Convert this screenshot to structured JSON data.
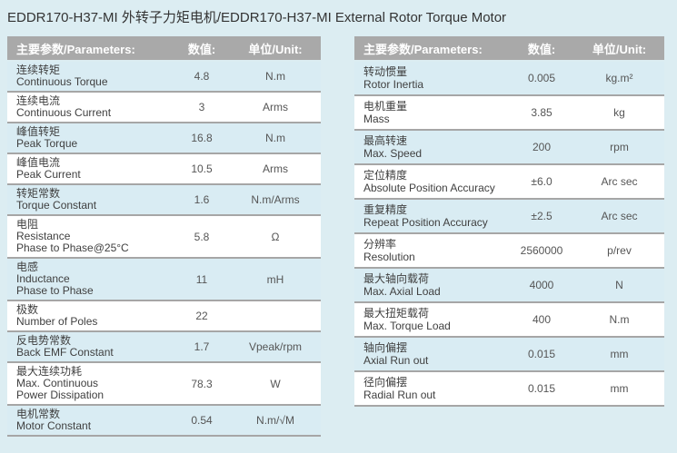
{
  "title": "EDDR170-H37-MI 外转子力矩电机/EDDR170-H37-MI External Rotor Torque Motor",
  "column_headers": {
    "param": "主要参数/Parameters:",
    "value": "数值:",
    "unit": "单位/Unit:"
  },
  "tables": {
    "left": {
      "rows": [
        {
          "lines": [
            "连续转矩",
            "Continuous Torque"
          ],
          "value": "4.8",
          "unit": "N.m"
        },
        {
          "lines": [
            "连续电流",
            "Continuous Current"
          ],
          "value": "3",
          "unit": "Arms"
        },
        {
          "lines": [
            "峰值转矩",
            "Peak Torque"
          ],
          "value": "16.8",
          "unit": "N.m"
        },
        {
          "lines": [
            "峰值电流",
            "Peak Current"
          ],
          "value": "10.5",
          "unit": "Arms"
        },
        {
          "lines": [
            "转矩常数",
            "Torque Constant"
          ],
          "value": "1.6",
          "unit": "N.m/Arms"
        },
        {
          "lines": [
            "电阻",
            "Resistance",
            "Phase to Phase@25°C"
          ],
          "value": "5.8",
          "unit": "Ω"
        },
        {
          "lines": [
            "电感",
            "Inductance",
            "Phase to Phase"
          ],
          "value": "11",
          "unit": "mH"
        },
        {
          "lines": [
            "极数",
            "Number of Poles"
          ],
          "value": "22",
          "unit": ""
        },
        {
          "lines": [
            "反电势常数",
            "Back EMF Constant"
          ],
          "value": "1.7",
          "unit": "Vpeak/rpm"
        },
        {
          "lines": [
            "最大连续功耗",
            "Max. Continuous",
            "Power Dissipation"
          ],
          "value": "78.3",
          "unit": "W"
        },
        {
          "lines": [
            "电机常数",
            "Motor Constant"
          ],
          "value": "0.54",
          "unit": "N.m/√M"
        }
      ]
    },
    "right": {
      "rows": [
        {
          "lines": [
            "转动惯量",
            "Rotor Inertia"
          ],
          "value": "0.005",
          "unit": "kg.m²"
        },
        {
          "lines": [
            "电机重量",
            "Mass"
          ],
          "value": "3.85",
          "unit": "kg"
        },
        {
          "lines": [
            "最高转速",
            "Max. Speed"
          ],
          "value": "200",
          "unit": "rpm"
        },
        {
          "lines": [
            "定位精度",
            "Absolute Position Accuracy"
          ],
          "value": "±6.0",
          "unit": "Arc sec"
        },
        {
          "lines": [
            "重复精度",
            "Repeat Position Accuracy"
          ],
          "value": "±2.5",
          "unit": "Arc sec"
        },
        {
          "lines": [
            "分辨率",
            "Resolution"
          ],
          "value": "2560000",
          "unit": "p/rev"
        },
        {
          "lines": [
            "最大轴向载荷",
            "Max. Axial Load"
          ],
          "value": "4000",
          "unit": "N"
        },
        {
          "lines": [
            "最大扭矩载荷",
            "Max. Torque Load"
          ],
          "value": "400",
          "unit": "N.m"
        },
        {
          "lines": [
            "轴向偏摆",
            "Axial Run out"
          ],
          "value": "0.015",
          "unit": "mm"
        },
        {
          "lines": [
            "径向偏摆",
            "Radial Run out"
          ],
          "value": "0.015",
          "unit": "mm"
        }
      ]
    }
  },
  "colors": {
    "background": "#dcedf2",
    "row_alt": "#d9ecf3",
    "row_white": "#ffffff",
    "header_bg": "#a9a9a9",
    "header_text": "#ffffff",
    "divider": "#a6a6a6",
    "label_text": "#404040",
    "value_text": "#555555",
    "title_text": "#333333"
  }
}
